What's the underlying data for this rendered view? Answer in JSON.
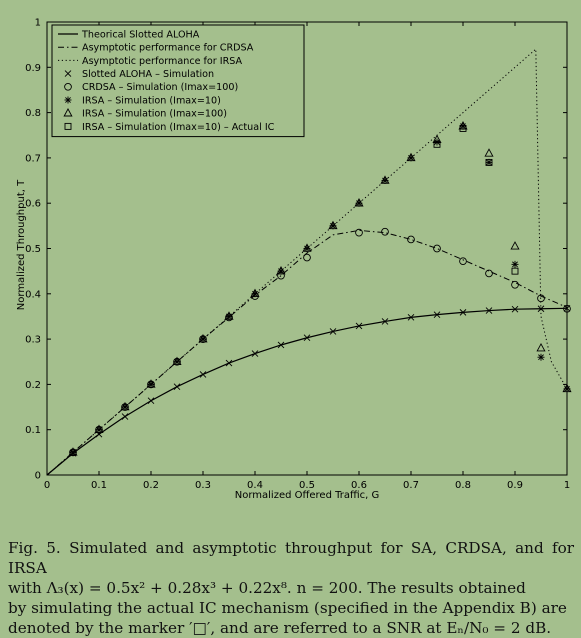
{
  "chart_data": {
    "type": "scatter",
    "xlabel": "Normalized Offered Traffic, G",
    "ylabel": "Normalized Throughput, T",
    "xlim": [
      0,
      1
    ],
    "ylim": [
      0,
      1
    ],
    "grid": false,
    "legend_position": "top-left",
    "x_ticks": [
      "0",
      "0.1",
      "0.2",
      "0.3",
      "0.4",
      "0.5",
      "0.6",
      "0.7",
      "0.8",
      "0.9",
      "1"
    ],
    "y_ticks": [
      "0",
      "0.1",
      "0.2",
      "0.3",
      "0.4",
      "0.5",
      "0.6",
      "0.7",
      "0.8",
      "0.9",
      "1"
    ],
    "series": [
      {
        "name": "Theorical Slotted ALOHA",
        "kind": "line",
        "style": "solid",
        "x": [
          0,
          0.05,
          0.1,
          0.15,
          0.2,
          0.25,
          0.3,
          0.35,
          0.4,
          0.45,
          0.5,
          0.55,
          0.6,
          0.65,
          0.7,
          0.75,
          0.8,
          0.85,
          0.9,
          0.95,
          1.0
        ],
        "y": [
          0,
          0.048,
          0.09,
          0.129,
          0.164,
          0.195,
          0.222,
          0.247,
          0.268,
          0.287,
          0.303,
          0.317,
          0.329,
          0.339,
          0.348,
          0.354,
          0.359,
          0.363,
          0.366,
          0.367,
          0.368
        ]
      },
      {
        "name": "Asymptotic performance for CRDSA",
        "kind": "line",
        "style": "dashdot",
        "x": [
          0,
          0.05,
          0.1,
          0.15,
          0.2,
          0.25,
          0.3,
          0.35,
          0.4,
          0.45,
          0.5,
          0.55,
          0.6,
          0.65,
          0.7,
          0.75,
          0.8,
          0.85,
          0.9,
          0.95,
          1.0
        ],
        "y": [
          0,
          0.05,
          0.1,
          0.15,
          0.2,
          0.25,
          0.3,
          0.348,
          0.397,
          0.44,
          0.49,
          0.53,
          0.54,
          0.535,
          0.52,
          0.5,
          0.475,
          0.45,
          0.425,
          0.395,
          0.37
        ]
      },
      {
        "name": "Asymptotic performance for IRSA",
        "kind": "line",
        "style": "dotted",
        "x": [
          0,
          0.1,
          0.2,
          0.3,
          0.4,
          0.5,
          0.6,
          0.7,
          0.8,
          0.9,
          0.94,
          0.95,
          0.97,
          0.99,
          1.0
        ],
        "y": [
          0,
          0.1,
          0.2,
          0.3,
          0.4,
          0.5,
          0.6,
          0.7,
          0.8,
          0.9,
          0.94,
          0.35,
          0.25,
          0.21,
          0.19
        ]
      },
      {
        "name": "Slotted ALOHA – Simulation",
        "kind": "marker",
        "marker": "x",
        "x": [
          0.05,
          0.1,
          0.15,
          0.2,
          0.25,
          0.3,
          0.35,
          0.4,
          0.45,
          0.5,
          0.55,
          0.6,
          0.65,
          0.7,
          0.75,
          0.8,
          0.85,
          0.9,
          0.95,
          1.0
        ],
        "y": [
          0.048,
          0.09,
          0.129,
          0.164,
          0.195,
          0.222,
          0.247,
          0.268,
          0.287,
          0.303,
          0.317,
          0.329,
          0.339,
          0.348,
          0.354,
          0.359,
          0.363,
          0.366,
          0.367,
          0.368
        ]
      },
      {
        "name": "CRDSA – Simulation (Imax=100)",
        "kind": "marker",
        "marker": "circle",
        "x": [
          0.05,
          0.1,
          0.15,
          0.2,
          0.25,
          0.3,
          0.35,
          0.4,
          0.45,
          0.5,
          0.6,
          0.65,
          0.7,
          0.75,
          0.8,
          0.85,
          0.9,
          0.95,
          1.0
        ],
        "y": [
          0.05,
          0.1,
          0.15,
          0.2,
          0.25,
          0.3,
          0.348,
          0.395,
          0.44,
          0.48,
          0.535,
          0.537,
          0.52,
          0.5,
          0.472,
          0.445,
          0.42,
          0.39,
          0.367
        ]
      },
      {
        "name": "IRSA – Simulation (Imax=10)",
        "kind": "marker",
        "marker": "star",
        "x": [
          0.05,
          0.1,
          0.15,
          0.2,
          0.25,
          0.3,
          0.35,
          0.4,
          0.45,
          0.5,
          0.55,
          0.6,
          0.65,
          0.7,
          0.75,
          0.8,
          0.85,
          0.9,
          0.95,
          1.0
        ],
        "y": [
          0.05,
          0.1,
          0.15,
          0.2,
          0.25,
          0.3,
          0.35,
          0.4,
          0.45,
          0.5,
          0.55,
          0.6,
          0.65,
          0.7,
          0.735,
          0.77,
          0.69,
          0.465,
          0.26,
          0.19
        ]
      },
      {
        "name": "IRSA – Simulation (Imax=100)",
        "kind": "marker",
        "marker": "triangle",
        "x": [
          0.05,
          0.1,
          0.15,
          0.2,
          0.25,
          0.3,
          0.35,
          0.4,
          0.45,
          0.5,
          0.55,
          0.6,
          0.65,
          0.7,
          0.75,
          0.8,
          0.85,
          0.9,
          0.95,
          1.0
        ],
        "y": [
          0.05,
          0.1,
          0.15,
          0.2,
          0.25,
          0.3,
          0.35,
          0.4,
          0.45,
          0.5,
          0.55,
          0.6,
          0.65,
          0.7,
          0.74,
          0.77,
          0.71,
          0.505,
          0.28,
          0.19
        ]
      },
      {
        "name": "IRSA – Simulation (Imax=10) – Actual IC",
        "kind": "marker",
        "marker": "square",
        "x": [
          0.75,
          0.8,
          0.85,
          0.9
        ],
        "y": [
          0.73,
          0.765,
          0.69,
          0.45
        ]
      }
    ]
  },
  "caption": {
    "line1": "Fig. 5.   Simulated and asymptotic throughput for SA, CRDSA, and for IRSA",
    "line2": "with Λ₃(x) = 0.5x² + 0.28x³ + 0.22x⁸. n = 200. The results obtained",
    "line3": "by simulating the actual IC mechanism (specified in the Appendix B) are",
    "line4": "denoted by the marker ′□′, and are referred to a SNR at Eₙ/N₀ = 2 dB."
  }
}
